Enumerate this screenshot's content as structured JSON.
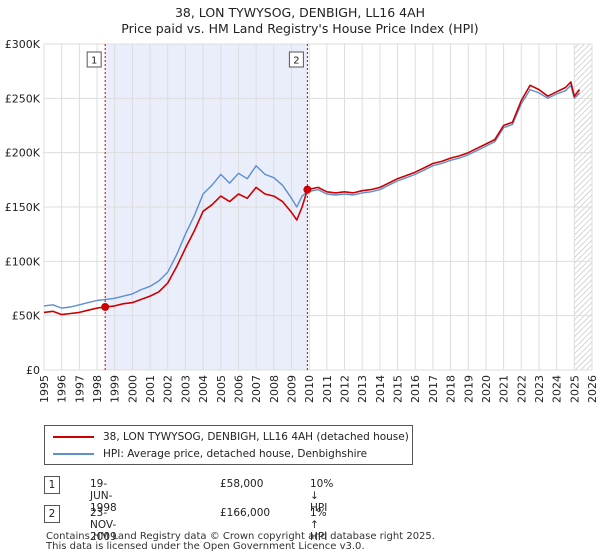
{
  "title_line1": "38, LON TYWYSOG, DENBIGH, LL16 4AH",
  "title_line2": "Price paid vs. HM Land Registry's House Price Index (HPI)",
  "colors": {
    "property": "#cc0000",
    "hpi": "#5b8fd0",
    "shade": "#eaeefb",
    "grid": "#dddddd"
  },
  "chart_data": {
    "type": "line",
    "xlim": [
      1995,
      2026
    ],
    "ylim": [
      0,
      300000
    ],
    "x_ticks": [
      "1995",
      "1996",
      "1997",
      "1998",
      "1999",
      "2000",
      "2001",
      "2002",
      "2003",
      "2004",
      "2005",
      "2006",
      "2007",
      "2008",
      "2009",
      "2010",
      "2011",
      "2012",
      "2013",
      "2014",
      "2015",
      "2016",
      "2017",
      "2018",
      "2019",
      "2020",
      "2021",
      "2022",
      "2023",
      "2024",
      "2025",
      "2026"
    ],
    "y_ticks": [
      {
        "value": 0,
        "label": "£0"
      },
      {
        "value": 50000,
        "label": "£50K"
      },
      {
        "value": 100000,
        "label": "£100K"
      },
      {
        "value": 150000,
        "label": "£150K"
      },
      {
        "value": 200000,
        "label": "£200K"
      },
      {
        "value": 250000,
        "label": "£250K"
      },
      {
        "value": 300000,
        "label": "£300K"
      }
    ],
    "shaded_range": [
      1998.46,
      2009.9
    ],
    "hatched_from": 2025.0,
    "series": [
      {
        "name": "38, LON TYWYSOG, DENBIGH, LL16 4AH (detached house)",
        "key": "property",
        "x": [
          1995.0,
          1995.5,
          1996.0,
          1996.5,
          1997.0,
          1997.5,
          1998.0,
          1998.46,
          1999.0,
          1999.5,
          2000.0,
          2000.5,
          2001.0,
          2001.5,
          2002.0,
          2002.5,
          2003.0,
          2003.5,
          2004.0,
          2004.5,
          2005.0,
          2005.5,
          2006.0,
          2006.5,
          2007.0,
          2007.5,
          2008.0,
          2008.5,
          2009.0,
          2009.3,
          2009.6,
          2009.9,
          2010.5,
          2011.0,
          2011.5,
          2012.0,
          2012.5,
          2013.0,
          2013.5,
          2014.0,
          2014.5,
          2015.0,
          2015.5,
          2016.0,
          2016.5,
          2017.0,
          2017.5,
          2018.0,
          2018.5,
          2019.0,
          2019.5,
          2020.0,
          2020.5,
          2021.0,
          2021.5,
          2022.0,
          2022.5,
          2023.0,
          2023.5,
          2024.0,
          2024.5,
          2024.8,
          2025.0,
          2025.3
        ],
        "y": [
          53000,
          54000,
          51000,
          52000,
          53000,
          55000,
          57000,
          58000,
          59000,
          61000,
          62000,
          65000,
          68000,
          72000,
          80000,
          95000,
          112000,
          128000,
          146000,
          152000,
          160000,
          155000,
          162000,
          158000,
          168000,
          162000,
          160000,
          155000,
          145000,
          138000,
          150000,
          166000,
          168000,
          164000,
          163000,
          164000,
          163000,
          165000,
          166000,
          168000,
          172000,
          176000,
          179000,
          182000,
          186000,
          190000,
          192000,
          195000,
          197000,
          200000,
          204000,
          208000,
          212000,
          225000,
          228000,
          248000,
          262000,
          258000,
          252000,
          256000,
          260000,
          265000,
          252000,
          258000
        ]
      },
      {
        "name": "HPI: Average price, detached house, Denbighshire",
        "key": "hpi",
        "x": [
          1995.0,
          1995.5,
          1996.0,
          1996.5,
          1997.0,
          1997.5,
          1998.0,
          1998.5,
          1999.0,
          1999.5,
          2000.0,
          2000.5,
          2001.0,
          2001.5,
          2002.0,
          2002.5,
          2003.0,
          2003.5,
          2004.0,
          2004.5,
          2005.0,
          2005.5,
          2006.0,
          2006.5,
          2007.0,
          2007.5,
          2008.0,
          2008.5,
          2009.0,
          2009.3,
          2009.6,
          2009.9,
          2010.5,
          2011.0,
          2011.5,
          2012.0,
          2012.5,
          2013.0,
          2013.5,
          2014.0,
          2014.5,
          2015.0,
          2015.5,
          2016.0,
          2016.5,
          2017.0,
          2017.5,
          2018.0,
          2018.5,
          2019.0,
          2019.5,
          2020.0,
          2020.5,
          2021.0,
          2021.5,
          2022.0,
          2022.5,
          2023.0,
          2023.5,
          2024.0,
          2024.5,
          2024.8,
          2025.0,
          2025.3
        ],
        "y": [
          59000,
          60000,
          57000,
          58000,
          60000,
          62000,
          64000,
          65000,
          66000,
          68000,
          70000,
          74000,
          77000,
          82000,
          90000,
          106000,
          125000,
          142000,
          162000,
          170000,
          180000,
          172000,
          181000,
          176000,
          188000,
          180000,
          177000,
          170000,
          158000,
          150000,
          160000,
          164000,
          166000,
          162000,
          161000,
          162000,
          161000,
          163000,
          164000,
          166000,
          170000,
          174000,
          177000,
          180000,
          184000,
          188000,
          190000,
          193000,
          195000,
          198000,
          202000,
          206000,
          210000,
          223000,
          226000,
          245000,
          258000,
          255000,
          250000,
          254000,
          257000,
          262000,
          250000,
          255000
        ]
      }
    ],
    "markers": [
      {
        "label": "1",
        "x": 1998.46,
        "y": 58000
      },
      {
        "label": "2",
        "x": 2009.9,
        "y": 166000
      }
    ]
  },
  "legend": {
    "property": "38, LON TYWYSOG, DENBIGH, LL16 4AH (detached house)",
    "hpi": "HPI: Average price, detached house, Denbighshire"
  },
  "annotations": [
    {
      "num": "1",
      "date": "19-JUN-1998",
      "price": "£58,000",
      "hpi": "10% ↓ HPI"
    },
    {
      "num": "2",
      "date": "23-NOV-2009",
      "price": "£166,000",
      "hpi": "1% ↑ HPI"
    }
  ],
  "footer": {
    "line1": "Contains HM Land Registry data © Crown copyright and database right 2025.",
    "line2": "This data is licensed under the Open Government Licence v3.0."
  }
}
